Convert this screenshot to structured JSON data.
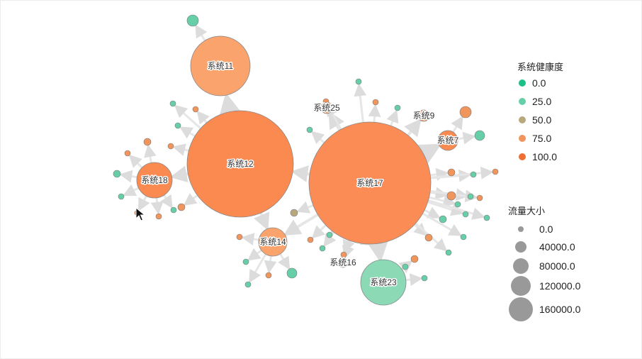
{
  "colors": {
    "h0": "#1bbf8a",
    "h25": "#66cfa8",
    "h50": "#b8a87c",
    "h75": "#f0955c",
    "h100": "#ef6f33",
    "system11": "#fba36c",
    "system12": "#fb8a51",
    "system17": "#fc8c55",
    "system18": "#fb8a51",
    "system14": "#fba36c",
    "system23": "#8cd9b6",
    "size_marker": "#999999",
    "edge": "#e6e6e6"
  },
  "legend_health": {
    "title": "系统健康度",
    "items": [
      {
        "label": "0.0",
        "color": "#1bbf8a"
      },
      {
        "label": "25.0",
        "color": "#66cfa8"
      },
      {
        "label": "50.0",
        "color": "#b8a87c"
      },
      {
        "label": "75.0",
        "color": "#f0955c"
      },
      {
        "label": "100.0",
        "color": "#ef6f33"
      }
    ]
  },
  "legend_size": {
    "title": "流量大小",
    "items": [
      {
        "label": "0.0"
      },
      {
        "label": "40000.0"
      },
      {
        "label": "80000.0"
      },
      {
        "label": "120000.0"
      },
      {
        "label": "160000.0"
      }
    ]
  },
  "nodes": [
    {
      "id": "s11",
      "label": "系统11",
      "color": "#fba36c"
    },
    {
      "id": "s12",
      "label": "系统12",
      "color": "#fb8a51"
    },
    {
      "id": "s17",
      "label": "系统17",
      "color": "#fc8c55"
    },
    {
      "id": "s18",
      "label": "系统18",
      "color": "#fb8a51"
    },
    {
      "id": "s14",
      "label": "系统14",
      "color": "#fba36c"
    },
    {
      "id": "s23",
      "label": "系统23",
      "color": "#8cd9b6"
    },
    {
      "id": "s25",
      "label": "系统25",
      "color": "#fba36c"
    },
    {
      "id": "s9",
      "label": "系统9",
      "color": "#fba36c"
    },
    {
      "id": "s7",
      "label": "系统7",
      "color": "#fb8a51"
    },
    {
      "id": "s16",
      "label": "系统16",
      "color": "#ffffff"
    }
  ]
}
